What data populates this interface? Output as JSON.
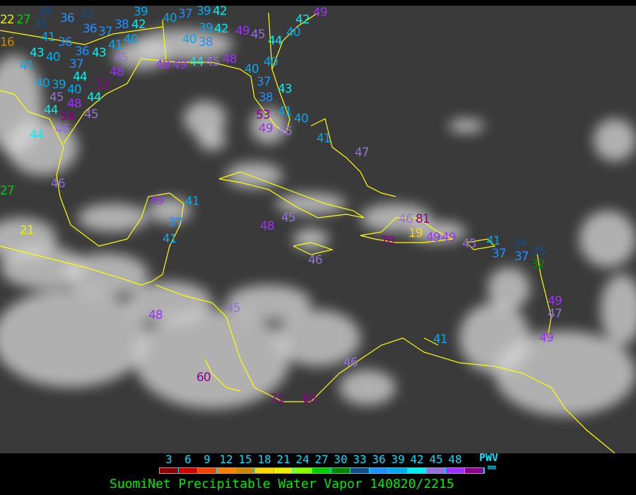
{
  "legend": {
    "ticks": [
      "3",
      "6",
      "9",
      "12",
      "15",
      "18",
      "21",
      "24",
      "27",
      "30",
      "33",
      "36",
      "39",
      "42",
      "45",
      "48"
    ],
    "colors": [
      "#8b0000",
      "#cc0000",
      "#ee4400",
      "#ff8000",
      "#cc8800",
      "#ffd700",
      "#eeee00",
      "#88ff00",
      "#00cc00",
      "#008800",
      "#104e8b",
      "#1e90ff",
      "#00aaee",
      "#00eeee",
      "#9370db",
      "#9b30ff",
      "#8b008b"
    ],
    "unit_top": "PWV",
    "unit_bottom": "mm"
  },
  "title": "SuomiNet Precipitable Water Vapor 140820/2215",
  "coastline_color": "#ffff00",
  "stations": [
    22,
    27,
    35,
    34,
    36,
    33,
    41,
    36,
    16,
    43,
    40,
    36,
    43,
    41,
    37,
    44,
    40,
    39,
    40,
    53,
    45,
    48,
    44,
    54,
    45,
    44,
    46,
    44,
    36,
    37,
    41,
    45,
    48,
    40,
    38,
    42,
    39,
    40,
    37,
    39,
    42,
    40,
    39,
    38,
    42,
    49,
    45,
    44,
    40,
    42,
    49,
    48,
    49,
    44,
    45,
    48,
    40,
    37,
    40,
    43,
    38,
    53,
    41,
    49,
    46,
    40,
    41,
    47,
    46,
    27,
    21,
    49,
    41,
    37,
    41,
    48,
    45,
    46,
    46,
    81,
    70,
    19,
    49,
    49,
    45,
    41,
    37,
    34,
    37,
    35,
    32,
    49,
    47,
    49,
    41,
    48,
    45,
    46,
    60,
    71,
    83
  ]
}
